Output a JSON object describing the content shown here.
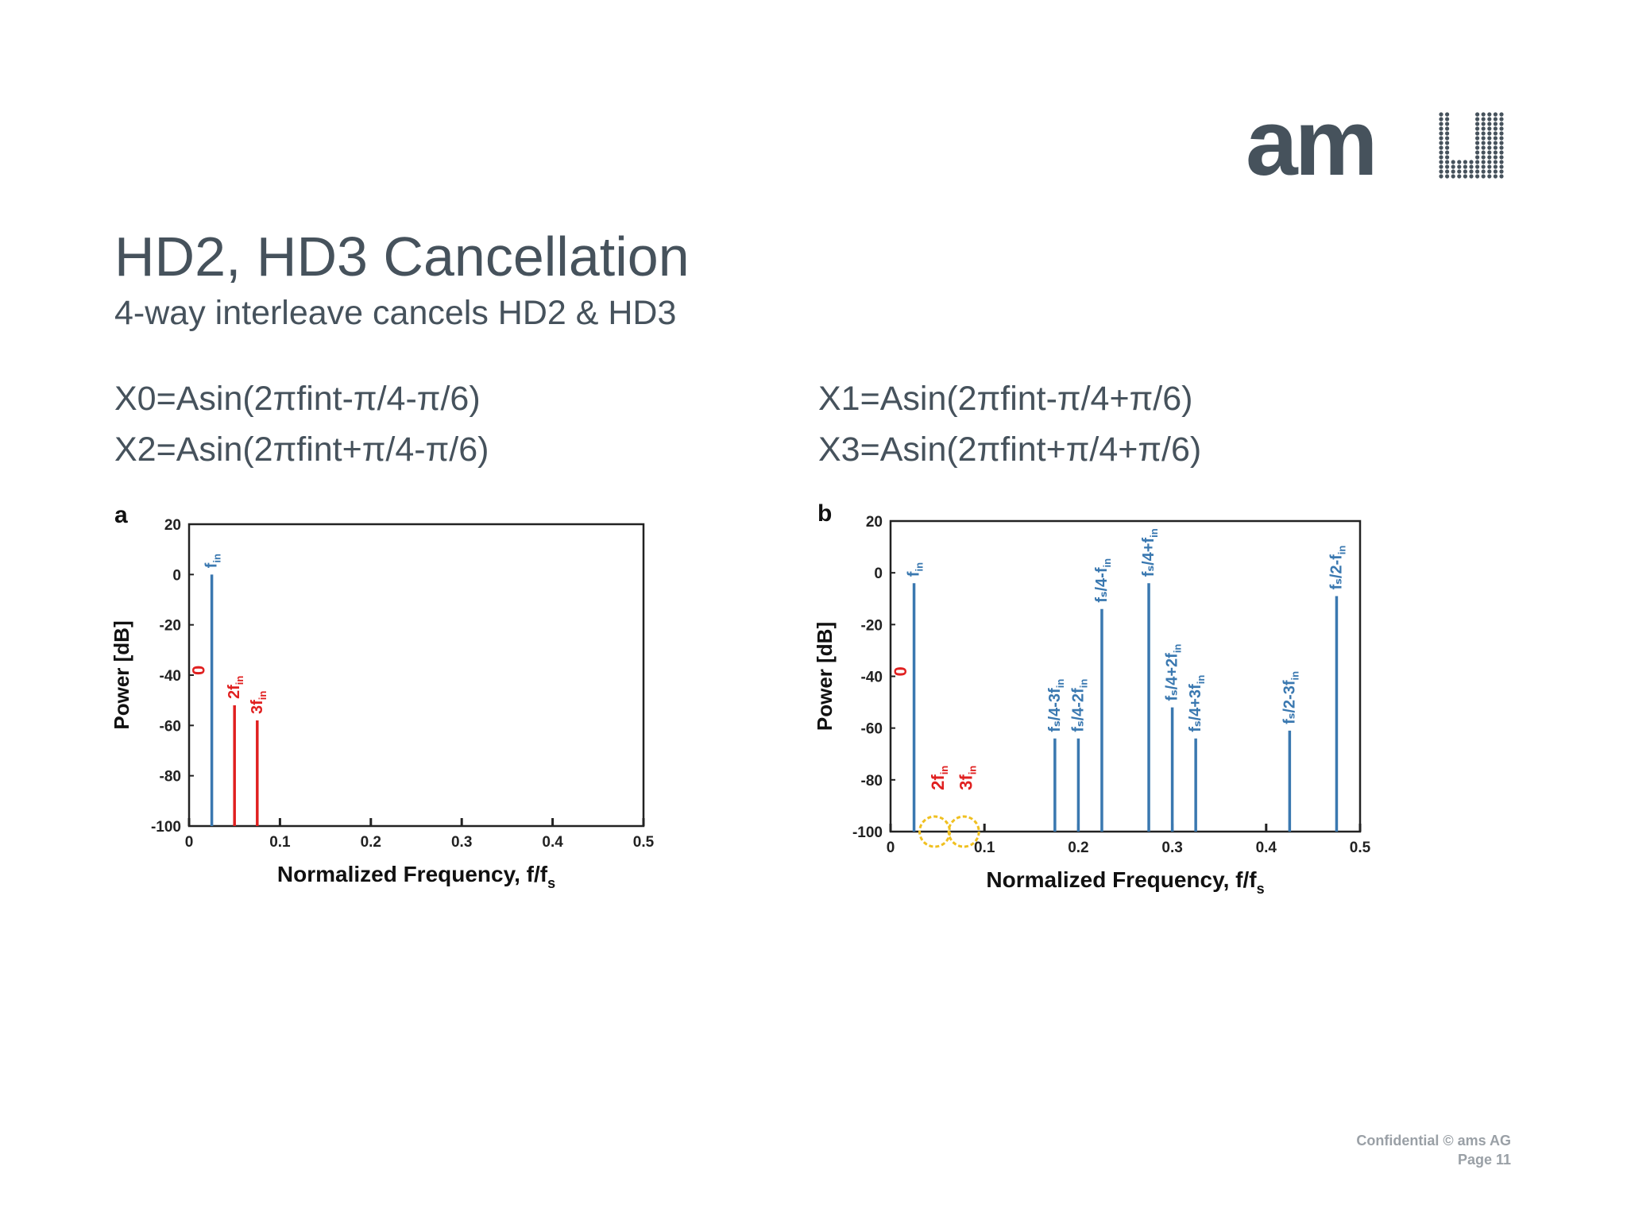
{
  "slide": {
    "title": "HD2, HD3 Cancellation",
    "subtitle": "4-way interleave cancels HD2 & HD3",
    "formulas": {
      "x0": "X0=Asin(2πfint-π/4-π/6)",
      "x1": "X1=Asin(2πfint-π/4+π/6)",
      "x2": "X2=Asin(2πfint+π/4-π/6)",
      "x3": "X3=Asin(2πfint+π/4+π/6)"
    },
    "footer": {
      "confidential": "Confidential © ams AG",
      "page": "Page 11"
    },
    "logo": {
      "text": "am",
      "icon": "ams-logo-dot-matrix-icon",
      "color": "#46525c"
    }
  },
  "colors": {
    "text": "#46525c",
    "bar": "#3a78b0",
    "red": "#e02020",
    "yellow": "#f0c020",
    "axis": "#222222"
  },
  "chart_data": [
    {
      "type": "bar",
      "panel_label": "a",
      "xlabel": "Normalized Frequency, f/f",
      "xlabel_sub": "s",
      "ylabel": "Power [dB]",
      "xlim": [
        0,
        0.5
      ],
      "ylim": [
        -100,
        20
      ],
      "xticks": [
        0,
        0.1,
        0.2,
        0.3,
        0.4,
        0.5
      ],
      "xtick_labels": [
        "0",
        "0.1",
        "0.2",
        "0.3",
        "0.4",
        "0.5"
      ],
      "yticks": [
        20,
        0,
        -20,
        -40,
        -60,
        -80,
        -100
      ],
      "ytick_labels": [
        "20",
        "0",
        "-20",
        "-40",
        "-60",
        "-80",
        "-100"
      ],
      "bars": [
        {
          "x": 0.025,
          "value": 0,
          "label": "f",
          "sub": "in",
          "color": "blue"
        },
        {
          "x": 0.05,
          "value": -52,
          "label": "2f",
          "sub": "in",
          "color": "red"
        },
        {
          "x": 0.075,
          "value": -58,
          "label": "3f",
          "sub": "in",
          "color": "red"
        }
      ],
      "annotations": [
        {
          "text": "0",
          "x": 0.01,
          "y": -40,
          "color": "red"
        }
      ],
      "circles": []
    },
    {
      "type": "bar",
      "panel_label": "b",
      "xlabel": "Normalized Frequency, f/f",
      "xlabel_sub": "s",
      "ylabel": "Power [dB]",
      "xlim": [
        0,
        0.5
      ],
      "ylim": [
        -100,
        20
      ],
      "xticks": [
        0,
        0.1,
        0.2,
        0.3,
        0.4,
        0.5
      ],
      "xtick_labels": [
        "0",
        "0.1",
        "0.2",
        "0.3",
        "0.4",
        "0.5"
      ],
      "yticks": [
        20,
        0,
        -20,
        -40,
        -60,
        -80,
        -100
      ],
      "ytick_labels": [
        "20",
        "0",
        "-20",
        "-40",
        "-60",
        "-80",
        "-100"
      ],
      "bars": [
        {
          "x": 0.025,
          "value": -4,
          "label": "f",
          "sub": "in",
          "color": "blue"
        },
        {
          "x": 0.175,
          "value": -64,
          "label": "fₛ/4-3f",
          "sub": "in",
          "color": "blue"
        },
        {
          "x": 0.2,
          "value": -64,
          "label": "fₛ/4-2f",
          "sub": "in",
          "color": "blue"
        },
        {
          "x": 0.225,
          "value": -14,
          "label": "fₛ/4-f",
          "sub": "in",
          "color": "blue"
        },
        {
          "x": 0.275,
          "value": -4,
          "label": "fₛ/4+f",
          "sub": "in",
          "color": "blue"
        },
        {
          "x": 0.3,
          "value": -52,
          "label": "fₛ/4+2f",
          "sub": "in",
          "color": "blue"
        },
        {
          "x": 0.325,
          "value": -64,
          "label": "fₛ/4+3f",
          "sub": "in",
          "color": "blue"
        },
        {
          "x": 0.425,
          "value": -61,
          "label": "fₛ/2-3f",
          "sub": "in",
          "color": "blue"
        },
        {
          "x": 0.475,
          "value": -9,
          "label": "fₛ/2-f",
          "sub": "in",
          "color": "blue"
        }
      ],
      "annotations": [
        {
          "text": "0",
          "x": 0.01,
          "y": -40,
          "color": "red"
        },
        {
          "text": "2f",
          "sub": "in",
          "x": 0.05,
          "y": -84,
          "color": "red"
        },
        {
          "text": "3f",
          "sub": "in",
          "x": 0.08,
          "y": -84,
          "color": "red"
        }
      ],
      "circles": [
        {
          "x": 0.047,
          "y": -100
        },
        {
          "x": 0.078,
          "y": -100
        }
      ]
    }
  ]
}
